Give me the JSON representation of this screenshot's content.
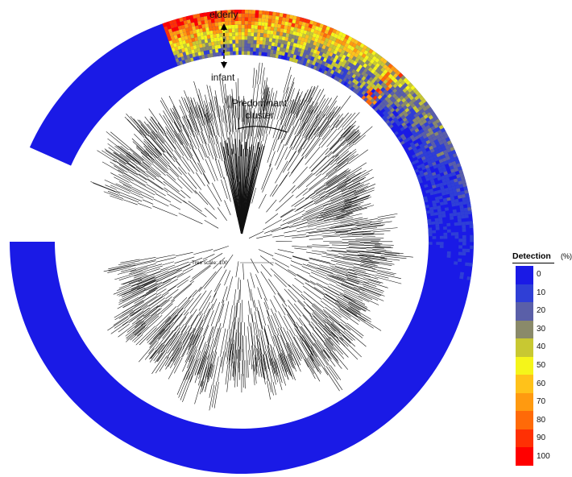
{
  "ring_labels": {
    "outer": "elderly",
    "inner": "infant"
  },
  "cluster_label": [
    "Predominant",
    "cluster"
  ],
  "tree_scale": "Tree scale: 100",
  "legend": {
    "title": "Detection",
    "unit": "(%)",
    "ticks": [
      "0",
      "10",
      "20",
      "30",
      "40",
      "50",
      "60",
      "70",
      "80",
      "90",
      "100"
    ],
    "colors": [
      "#1a1ae6",
      "#2f3fd6",
      "#5a5fa8",
      "#8a8a6a",
      "#c8c832",
      "#f5f51a",
      "#ffc21a",
      "#ff9a10",
      "#ff6a08",
      "#ff3004",
      "#ff0000"
    ]
  }
}
